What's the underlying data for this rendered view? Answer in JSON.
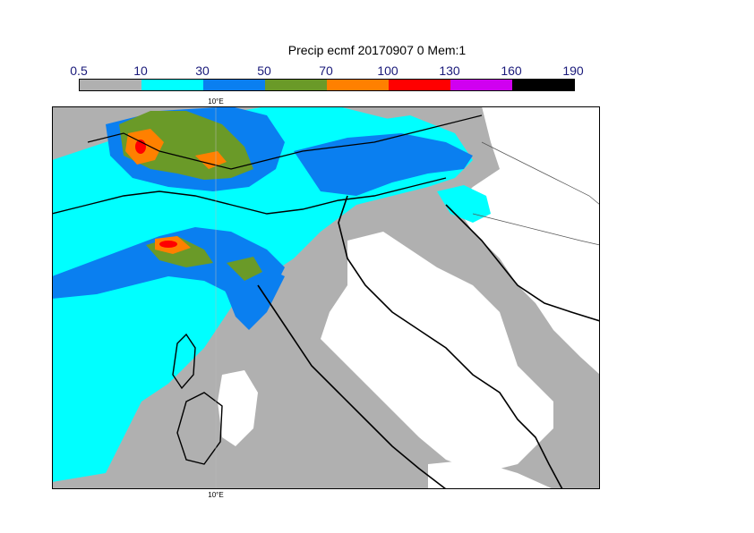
{
  "title": "Precip ecmf 20170907 0 Mem:1",
  "colorbar": {
    "labels": [
      "0.5",
      "10",
      "30",
      "50",
      "70",
      "100",
      "130",
      "160",
      "190"
    ],
    "colors": [
      "#b0b0b0",
      "#00ffff",
      "#0a7ff0",
      "#6a9a28",
      "#ff8000",
      "#ff0000",
      "#d000f0",
      "#000000"
    ]
  },
  "map": {
    "lon_label_top": "10°E",
    "lon_label_bottom": "10°E",
    "colors": {
      "sea": "#b0b0b0",
      "land": "#ffffff",
      "cyan": "#00ffff",
      "blue": "#0a7ff0",
      "green": "#6a9a28",
      "orange": "#ff8000",
      "red": "#ff0000"
    }
  }
}
